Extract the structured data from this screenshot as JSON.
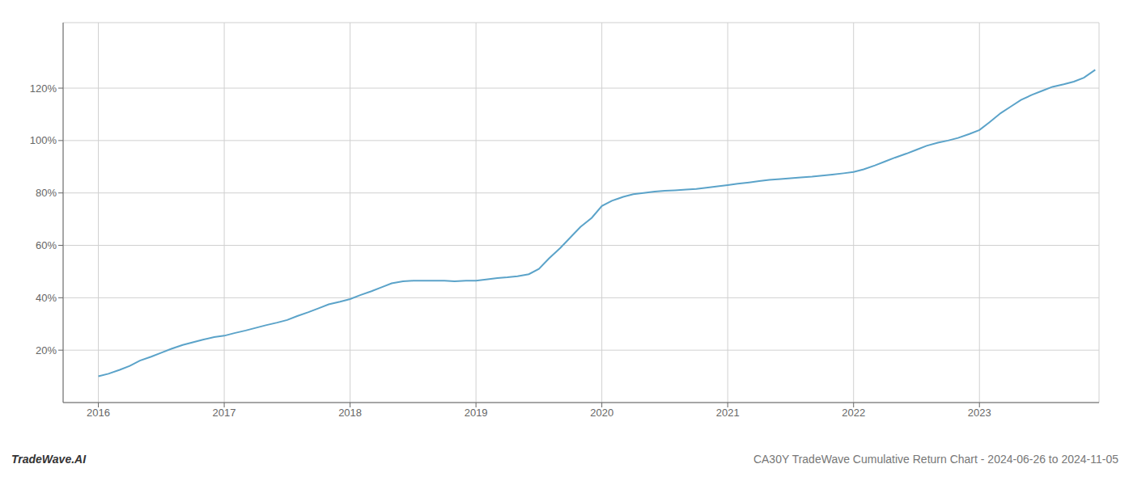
{
  "chart_data": {
    "type": "line",
    "annotations": [
      "TradeWave.AI",
      "CA30Y TradeWave Cumulative Return Chart - 2024-06-26 to 2024-11-05"
    ],
    "x": [
      2016.0,
      2016.08,
      2016.17,
      2016.25,
      2016.33,
      2016.42,
      2016.5,
      2016.58,
      2016.67,
      2016.75,
      2016.83,
      2016.92,
      2017.0,
      2017.08,
      2017.17,
      2017.25,
      2017.33,
      2017.42,
      2017.5,
      2017.58,
      2017.67,
      2017.75,
      2017.83,
      2017.92,
      2018.0,
      2018.08,
      2018.17,
      2018.25,
      2018.33,
      2018.42,
      2018.5,
      2018.58,
      2018.67,
      2018.75,
      2018.83,
      2018.92,
      2019.0,
      2019.08,
      2019.17,
      2019.25,
      2019.33,
      2019.42,
      2019.5,
      2019.58,
      2019.67,
      2019.75,
      2019.83,
      2019.92,
      2020.0,
      2020.08,
      2020.17,
      2020.25,
      2020.33,
      2020.42,
      2020.5,
      2020.58,
      2020.67,
      2020.75,
      2020.83,
      2020.92,
      2021.0,
      2021.08,
      2021.17,
      2021.25,
      2021.33,
      2021.42,
      2021.5,
      2021.58,
      2021.67,
      2021.75,
      2021.83,
      2021.92,
      2022.0,
      2022.08,
      2022.17,
      2022.25,
      2022.33,
      2022.42,
      2022.5,
      2022.58,
      2022.67,
      2022.75,
      2022.83,
      2022.92,
      2023.0,
      2023.08,
      2023.17,
      2023.25,
      2023.33,
      2023.42,
      2023.5,
      2023.58,
      2023.67,
      2023.75,
      2023.83,
      2023.92
    ],
    "values": [
      10.0,
      11.0,
      12.5,
      14.0,
      16.0,
      17.5,
      19.0,
      20.5,
      22.0,
      23.0,
      24.0,
      25.0,
      25.5,
      26.5,
      27.5,
      28.5,
      29.5,
      30.5,
      31.5,
      33.0,
      34.5,
      36.0,
      37.5,
      38.5,
      39.5,
      41.0,
      42.5,
      44.0,
      45.5,
      46.3,
      46.5,
      46.5,
      46.5,
      46.5,
      46.3,
      46.5,
      46.5,
      47.0,
      47.5,
      47.8,
      48.2,
      49.0,
      51.0,
      55.0,
      59.0,
      63.0,
      67.0,
      70.5,
      75.0,
      77.0,
      78.5,
      79.5,
      80.0,
      80.5,
      80.8,
      81.0,
      81.3,
      81.5,
      82.0,
      82.5,
      83.0,
      83.5,
      84.0,
      84.5,
      85.0,
      85.3,
      85.6,
      85.9,
      86.2,
      86.6,
      87.0,
      87.5,
      88.0,
      89.0,
      90.5,
      92.0,
      93.5,
      95.0,
      96.5,
      98.0,
      99.2,
      100.0,
      101.0,
      102.5,
      104.0,
      107.0,
      110.5,
      113.0,
      115.5,
      117.5,
      119.0,
      120.5,
      121.5,
      122.5,
      124.0,
      127.0
    ],
    "color": "#5ba3c9",
    "xlim": [
      2015.72,
      2023.95
    ],
    "xticks": [
      2016,
      2017,
      2018,
      2019,
      2020,
      2021,
      2022,
      2023
    ],
    "ylim": [
      0,
      145
    ],
    "yticks": [
      {
        "value": 20,
        "label": "20%"
      },
      {
        "value": 40,
        "label": "40%"
      },
      {
        "value": 60,
        "label": "60%"
      },
      {
        "value": 80,
        "label": "80%"
      },
      {
        "value": 100,
        "label": "100%"
      },
      {
        "value": 120,
        "label": "120%"
      }
    ],
    "grid": true
  }
}
